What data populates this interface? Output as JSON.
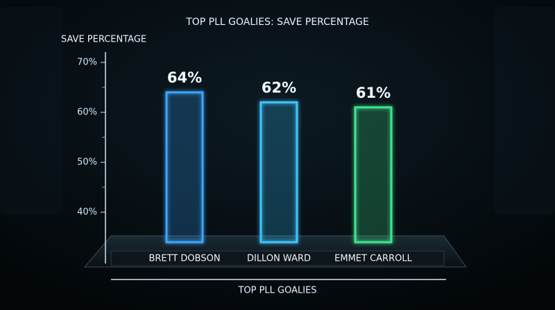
{
  "chart_data": {
    "type": "bar",
    "title": "TOP PLL GOALIES: SAVE PERCENTAGE",
    "y_label": "SAVE PERCENTAGE",
    "x_label": "TOP PLL GOALIES",
    "categories": [
      "BRETT DOBSON",
      "DILLON WARD",
      "EMMET CARROLL"
    ],
    "values": [
      64,
      62,
      61
    ],
    "value_labels": [
      "64%",
      "62%",
      "61%"
    ],
    "colors": [
      "#3aa6ff",
      "#3cc4ff",
      "#3ee58c"
    ],
    "ylim": [
      34,
      72
    ],
    "yticks": [
      {
        "value": 40,
        "label": "40%"
      },
      {
        "value": 50,
        "label": "50%"
      },
      {
        "value": 60,
        "label": "60%"
      },
      {
        "value": 70,
        "label": "70%"
      }
    ],
    "minor_yticks": [
      45,
      55,
      65
    ]
  }
}
